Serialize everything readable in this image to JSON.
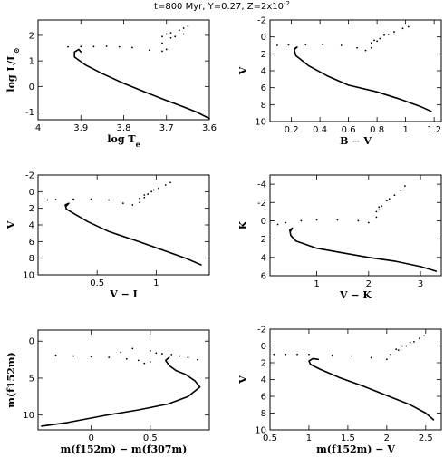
{
  "title": "t=800 Myr, Y=0.27, Z=2x10",
  "title_exponent": "-2",
  "chart_data": [
    {
      "type": "scatter",
      "xlabel": "log T",
      "xlabel_sub": "e",
      "ylabel": "log L/L",
      "ylabel_sub": "⊙",
      "xlim": [
        4.0,
        3.6
      ],
      "ylim": [
        -1.3,
        2.6
      ],
      "xticks": [
        4.0,
        3.9,
        3.8,
        3.7,
        3.6
      ],
      "xtick_labels": [
        "4",
        "3.9",
        "3.8",
        "3.7",
        "3.6"
      ],
      "yticks": [
        -1,
        0,
        1,
        2
      ],
      "ytick_labels": [
        "-1",
        "0",
        "1",
        "2"
      ],
      "y_inverted": false,
      "main_sequence": [
        [
          3.6,
          -1.25
        ],
        [
          3.63,
          -1.0
        ],
        [
          3.66,
          -0.8
        ],
        [
          3.7,
          -0.55
        ],
        [
          3.75,
          -0.22
        ],
        [
          3.8,
          0.12
        ],
        [
          3.85,
          0.5
        ],
        [
          3.89,
          0.85
        ],
        [
          3.915,
          1.15
        ],
        [
          3.915,
          1.35
        ],
        [
          3.905,
          1.45
        ],
        [
          3.9,
          1.35
        ]
      ],
      "giant_points": [
        [
          3.93,
          1.55
        ],
        [
          3.9,
          1.56
        ],
        [
          3.87,
          1.56
        ],
        [
          3.84,
          1.57
        ],
        [
          3.81,
          1.55
        ],
        [
          3.78,
          1.52
        ],
        [
          3.74,
          1.42
        ],
        [
          3.71,
          1.38
        ],
        [
          3.7,
          1.45
        ],
        [
          3.71,
          1.7
        ],
        [
          3.71,
          1.95
        ],
        [
          3.7,
          2.05
        ],
        [
          3.69,
          2.1
        ],
        [
          3.67,
          2.2
        ],
        [
          3.66,
          2.28
        ],
        [
          3.65,
          2.35
        ],
        [
          3.69,
          1.9
        ],
        [
          3.68,
          1.95
        ],
        [
          3.66,
          2.05
        ]
      ]
    },
    {
      "type": "scatter",
      "xlabel": "B − V",
      "xlabel_sub": "",
      "ylabel": "V",
      "ylabel_sub": "",
      "xlim": [
        0.05,
        1.25
      ],
      "ylim": [
        -2,
        10
      ],
      "xticks": [
        0.2,
        0.4,
        0.6,
        0.8,
        1.0,
        1.2
      ],
      "xtick_labels": [
        "0.2",
        "0.4",
        "0.6",
        "0.8",
        "1",
        "1.2"
      ],
      "yticks": [
        -2,
        0,
        2,
        4,
        6,
        8,
        10
      ],
      "ytick_labels": [
        "-2",
        "0",
        "2",
        "4",
        "6",
        "8",
        "10"
      ],
      "y_inverted": true,
      "main_sequence": [
        [
          1.18,
          8.8
        ],
        [
          1.1,
          8.2
        ],
        [
          0.95,
          7.3
        ],
        [
          0.8,
          6.5
        ],
        [
          0.6,
          5.7
        ],
        [
          0.45,
          4.6
        ],
        [
          0.32,
          3.4
        ],
        [
          0.23,
          2.2
        ],
        [
          0.22,
          1.5
        ],
        [
          0.24,
          1.2
        ],
        [
          0.22,
          1.4
        ]
      ],
      "giant_points": [
        [
          0.1,
          1.0
        ],
        [
          0.18,
          0.95
        ],
        [
          0.3,
          0.9
        ],
        [
          0.42,
          0.9
        ],
        [
          0.55,
          1.0
        ],
        [
          0.66,
          1.3
        ],
        [
          0.72,
          1.6
        ],
        [
          0.76,
          1.3
        ],
        [
          0.76,
          0.7
        ],
        [
          0.78,
          0.4
        ],
        [
          0.85,
          -0.2
        ],
        [
          0.92,
          -0.6
        ],
        [
          0.98,
          -1.0
        ],
        [
          1.02,
          -1.2
        ],
        [
          0.8,
          0.5
        ],
        [
          0.82,
          0.2
        ],
        [
          0.88,
          -0.3
        ]
      ]
    },
    {
      "type": "scatter",
      "xlabel": "V − I",
      "xlabel_sub": "",
      "ylabel": "V",
      "ylabel_sub": "",
      "xlim": [
        0.0,
        1.45
      ],
      "ylim": [
        -2,
        10
      ],
      "xticks": [
        0.5,
        1.0
      ],
      "xtick_labels": [
        "0.5",
        "1"
      ],
      "yticks": [
        -2,
        0,
        2,
        4,
        6,
        8,
        10
      ],
      "ytick_labels": [
        "-2",
        "0",
        "2",
        "4",
        "6",
        "8",
        "10"
      ],
      "y_inverted": true,
      "main_sequence": [
        [
          1.38,
          8.8
        ],
        [
          1.25,
          8.0
        ],
        [
          1.05,
          7.0
        ],
        [
          0.85,
          6.0
        ],
        [
          0.6,
          4.8
        ],
        [
          0.42,
          3.6
        ],
        [
          0.3,
          2.6
        ],
        [
          0.24,
          2.1
        ],
        [
          0.23,
          1.6
        ],
        [
          0.26,
          1.4
        ],
        [
          0.24,
          1.7
        ]
      ],
      "giant_points": [
        [
          0.08,
          1.0
        ],
        [
          0.15,
          0.95
        ],
        [
          0.3,
          0.9
        ],
        [
          0.45,
          0.9
        ],
        [
          0.6,
          1.0
        ],
        [
          0.72,
          1.4
        ],
        [
          0.8,
          1.6
        ],
        [
          0.86,
          1.3
        ],
        [
          0.86,
          0.8
        ],
        [
          0.9,
          0.4
        ],
        [
          0.96,
          0.0
        ],
        [
          1.02,
          -0.4
        ],
        [
          1.08,
          -0.8
        ],
        [
          1.12,
          -1.1
        ],
        [
          0.9,
          0.7
        ],
        [
          0.93,
          0.3
        ],
        [
          0.98,
          -0.2
        ]
      ]
    },
    {
      "type": "scatter",
      "xlabel": "V − K",
      "xlabel_sub": "",
      "ylabel": "K",
      "ylabel_sub": "",
      "xlim": [
        0.1,
        3.4
      ],
      "ylim": [
        -5,
        6
      ],
      "xticks": [
        1,
        2,
        3
      ],
      "xtick_labels": [
        "1",
        "2",
        "3"
      ],
      "yticks": [
        -4,
        -2,
        0,
        2,
        4,
        6
      ],
      "ytick_labels": [
        "-4",
        "-2",
        "0",
        "2",
        "4",
        "6"
      ],
      "y_inverted": true,
      "main_sequence": [
        [
          3.3,
          5.5
        ],
        [
          3.0,
          5.0
        ],
        [
          2.5,
          4.4
        ],
        [
          2.0,
          4.0
        ],
        [
          1.5,
          3.5
        ],
        [
          1.0,
          3.0
        ],
        [
          0.6,
          2.2
        ],
        [
          0.5,
          1.6
        ],
        [
          0.48,
          1.0
        ],
        [
          0.53,
          0.8
        ],
        [
          0.5,
          1.1
        ]
      ],
      "giant_points": [
        [
          0.25,
          0.4
        ],
        [
          0.4,
          0.2
        ],
        [
          0.7,
          0.0
        ],
        [
          1.0,
          -0.1
        ],
        [
          1.4,
          -0.1
        ],
        [
          1.8,
          0.0
        ],
        [
          2.0,
          0.2
        ],
        [
          2.15,
          -0.4
        ],
        [
          2.15,
          -1.0
        ],
        [
          2.2,
          -1.5
        ],
        [
          2.35,
          -2.2
        ],
        [
          2.5,
          -2.8
        ],
        [
          2.62,
          -3.3
        ],
        [
          2.7,
          -3.8
        ],
        [
          2.2,
          -1.2
        ],
        [
          2.25,
          -1.6
        ],
        [
          2.4,
          -2.4
        ]
      ]
    },
    {
      "type": "scatter",
      "xlabel": "m(f152m) − m(f307m)",
      "xlabel_sub": "",
      "ylabel": "m(f152m)",
      "ylabel_sub": "",
      "xlim": [
        -0.45,
        1.0
      ],
      "ylim": [
        -1.5,
        12
      ],
      "xticks": [
        0,
        0.5
      ],
      "xtick_labels": [
        "0",
        "0.5"
      ],
      "yticks": [
        0,
        5,
        10
      ],
      "ytick_labels": [
        "0",
        "5",
        "10"
      ],
      "y_inverted": true,
      "main_sequence": [
        [
          -0.42,
          11.5
        ],
        [
          -0.2,
          11.0
        ],
        [
          0.1,
          10.1
        ],
        [
          0.4,
          9.3
        ],
        [
          0.65,
          8.5
        ],
        [
          0.82,
          7.5
        ],
        [
          0.92,
          6.2
        ],
        [
          0.88,
          5.4
        ],
        [
          0.8,
          4.5
        ],
        [
          0.72,
          4.0
        ],
        [
          0.66,
          3.3
        ],
        [
          0.63,
          2.6
        ],
        [
          0.66,
          2.2
        ]
      ],
      "giant_points": [
        [
          -0.3,
          1.9
        ],
        [
          -0.15,
          2.0
        ],
        [
          0.0,
          2.1
        ],
        [
          0.15,
          2.2
        ],
        [
          0.3,
          2.4
        ],
        [
          0.4,
          2.6
        ],
        [
          0.45,
          3.0
        ],
        [
          0.5,
          1.3
        ],
        [
          0.55,
          1.6
        ],
        [
          0.6,
          1.7
        ],
        [
          0.68,
          1.8
        ],
        [
          0.75,
          2.0
        ],
        [
          0.82,
          2.2
        ],
        [
          0.9,
          2.5
        ],
        [
          0.35,
          1.0
        ],
        [
          0.25,
          1.5
        ],
        [
          0.5,
          2.8
        ]
      ]
    },
    {
      "type": "scatter",
      "xlabel": "m(f152m) − V",
      "xlabel_sub": "",
      "ylabel": "V",
      "ylabel_sub": "",
      "xlim": [
        0.5,
        2.7
      ],
      "ylim": [
        -2,
        10
      ],
      "xticks": [
        0.5,
        1.0,
        1.5,
        2.0,
        2.5
      ],
      "xtick_labels": [
        "0.5",
        "1",
        "1.5",
        "2",
        "2.5"
      ],
      "yticks": [
        -2,
        0,
        2,
        4,
        6,
        8,
        10
      ],
      "ytick_labels": [
        "-2",
        "0",
        "2",
        "4",
        "6",
        "8",
        "10"
      ],
      "y_inverted": true,
      "main_sequence": [
        [
          2.6,
          8.8
        ],
        [
          2.5,
          8.0
        ],
        [
          2.3,
          7.0
        ],
        [
          2.0,
          5.9
        ],
        [
          1.7,
          4.8
        ],
        [
          1.4,
          3.8
        ],
        [
          1.15,
          2.8
        ],
        [
          1.02,
          2.2
        ],
        [
          1.0,
          1.8
        ],
        [
          1.05,
          1.5
        ],
        [
          1.12,
          1.6
        ]
      ],
      "giant_points": [
        [
          0.55,
          1.0
        ],
        [
          0.7,
          1.0
        ],
        [
          0.85,
          1.0
        ],
        [
          1.0,
          1.0
        ],
        [
          1.3,
          1.1
        ],
        [
          1.55,
          1.2
        ],
        [
          1.8,
          1.4
        ],
        [
          2.0,
          1.6
        ],
        [
          2.05,
          1.0
        ],
        [
          2.15,
          0.5
        ],
        [
          2.25,
          0.0
        ],
        [
          2.35,
          -0.5
        ],
        [
          2.42,
          -0.9
        ],
        [
          2.48,
          -1.2
        ],
        [
          2.12,
          0.4
        ],
        [
          2.2,
          0.0
        ],
        [
          2.3,
          -0.4
        ]
      ]
    }
  ]
}
